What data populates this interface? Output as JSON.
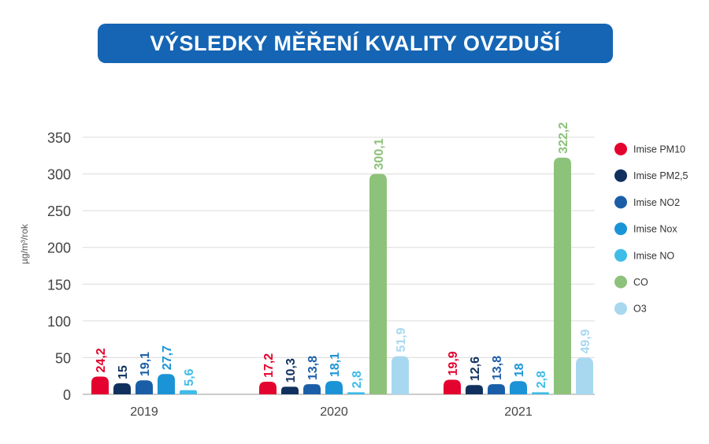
{
  "title": "VÝSLEDKY MĚŘENÍ KVALITY OVZDUŠÍ",
  "chart_data": {
    "type": "bar",
    "ylabel": "µg/m³/rok",
    "xlabel": "",
    "ylim": [
      0,
      350
    ],
    "yticks": [
      0,
      50,
      100,
      150,
      200,
      250,
      300,
      350
    ],
    "grid": true,
    "legend_position": "right",
    "categories": [
      "2019",
      "2020",
      "2021"
    ],
    "series": [
      {
        "name": "Imise PM10",
        "color": "#e4032e",
        "values": [
          24.2,
          17.2,
          19.9
        ],
        "labels": [
          "24,2",
          "17,2",
          "19,9"
        ]
      },
      {
        "name": "Imise PM2,5",
        "color": "#10315f",
        "values": [
          15,
          10.3,
          12.6
        ],
        "labels": [
          "15",
          "10,3",
          "12,6"
        ]
      },
      {
        "name": "Imise NO2",
        "color": "#1b5ea8",
        "values": [
          19.1,
          13.8,
          13.8
        ],
        "labels": [
          "19,1",
          "13,8",
          "13,8"
        ]
      },
      {
        "name": "Imise Nox",
        "color": "#1a94d6",
        "values": [
          27.7,
          18.1,
          18
        ],
        "labels": [
          "27,7",
          "18,1",
          "18"
        ]
      },
      {
        "name": "Imise NO",
        "color": "#3fbce8",
        "values": [
          5.6,
          2.8,
          2.8
        ],
        "labels": [
          "5,6",
          "2,8",
          "2,8"
        ]
      },
      {
        "name": "CO",
        "color": "#8dc27a",
        "values": [
          null,
          300.1,
          322.2
        ],
        "labels": [
          "",
          "300,1",
          "322,2"
        ]
      },
      {
        "name": "O3",
        "color": "#a8d8f0",
        "values": [
          null,
          51.9,
          49.9
        ],
        "labels": [
          "",
          "51,9",
          "49,9"
        ]
      }
    ]
  }
}
